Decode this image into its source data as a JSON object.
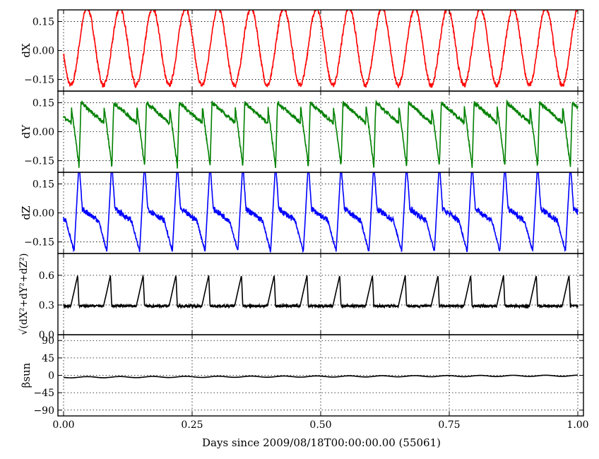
{
  "figure": {
    "xlabel": "Days since 2009/08/18T00:00:00.00 (55061)",
    "xticks": [
      "0.00",
      "0.25",
      "0.50",
      "0.75",
      "1.00"
    ]
  },
  "chart_data": [
    {
      "type": "line",
      "ylabel": "dX",
      "xlim": [
        0,
        1
      ],
      "ylim": [
        -0.21,
        0.21
      ],
      "yticks": [
        {
          "v": 0.15,
          "label": "0.15"
        },
        {
          "v": 0.0,
          "label": "0.00"
        },
        {
          "v": -0.15,
          "label": "−0.15"
        }
      ],
      "grid": true,
      "color": "#ff0000",
      "pattern": {
        "period": 0.0637,
        "phase": 0.03,
        "kind": "sine",
        "mean": 0.02,
        "amp": 0.2,
        "noise": 0.012
      }
    },
    {
      "type": "line",
      "ylabel": "dY",
      "xlim": [
        0,
        1
      ],
      "ylim": [
        -0.21,
        0.21
      ],
      "yticks": [
        {
          "v": 0.15,
          "label": "0.15"
        },
        {
          "v": 0.0,
          "label": "0.00"
        },
        {
          "v": -0.15,
          "label": "−0.15"
        }
      ],
      "grid": true,
      "color": "#008000",
      "pattern": {
        "period": 0.0637,
        "phase": 0.03,
        "kind": "sawtooth",
        "top": 0.15,
        "bottom": -0.19,
        "noise": 0.01
      }
    },
    {
      "type": "line",
      "ylabel": "dZ",
      "xlim": [
        0,
        1
      ],
      "ylim": [
        -0.21,
        0.21
      ],
      "yticks": [
        {
          "v": 0.15,
          "label": "0.15"
        },
        {
          "v": 0.0,
          "label": "0.00"
        },
        {
          "v": -0.15,
          "label": "−0.15"
        }
      ],
      "grid": true,
      "color": "#0000ff",
      "pattern": {
        "period": 0.0637,
        "phase": 0.03,
        "kind": "decay-spike",
        "base": 0.02,
        "low": -0.2,
        "high": 0.26,
        "noise": 0.015
      }
    },
    {
      "type": "line",
      "ylabel": "√(dX²+dY²+dZ²)",
      "xlim": [
        0,
        1
      ],
      "ylim": [
        0,
        0.82
      ],
      "yticks": [
        {
          "v": 0.6,
          "label": "0.6"
        },
        {
          "v": 0.3,
          "label": "0.3"
        },
        {
          "v": 0.0,
          "label": "0.0"
        }
      ],
      "grid": true,
      "color": "#000000",
      "pattern": {
        "period": 0.0637,
        "phase": 0.03,
        "kind": "spike",
        "base": 0.29,
        "peak": 0.6,
        "noise": 0.012
      }
    },
    {
      "type": "line",
      "ylabel": "βsun",
      "xlim": [
        0,
        1
      ],
      "ylim": [
        -105,
        105
      ],
      "yticks": [
        {
          "v": 90,
          "label": "90"
        },
        {
          "v": 45,
          "label": "45"
        },
        {
          "v": 0,
          "label": "0"
        },
        {
          "v": -45,
          "label": "−45"
        },
        {
          "v": -90,
          "label": "−90"
        }
      ],
      "grid": true,
      "color": "#000000",
      "pattern": {
        "period": 0.0637,
        "phase": 0.03,
        "kind": "wiggle",
        "start": -5,
        "end": -1,
        "amp": 1.5,
        "noise": 0.3
      }
    }
  ]
}
